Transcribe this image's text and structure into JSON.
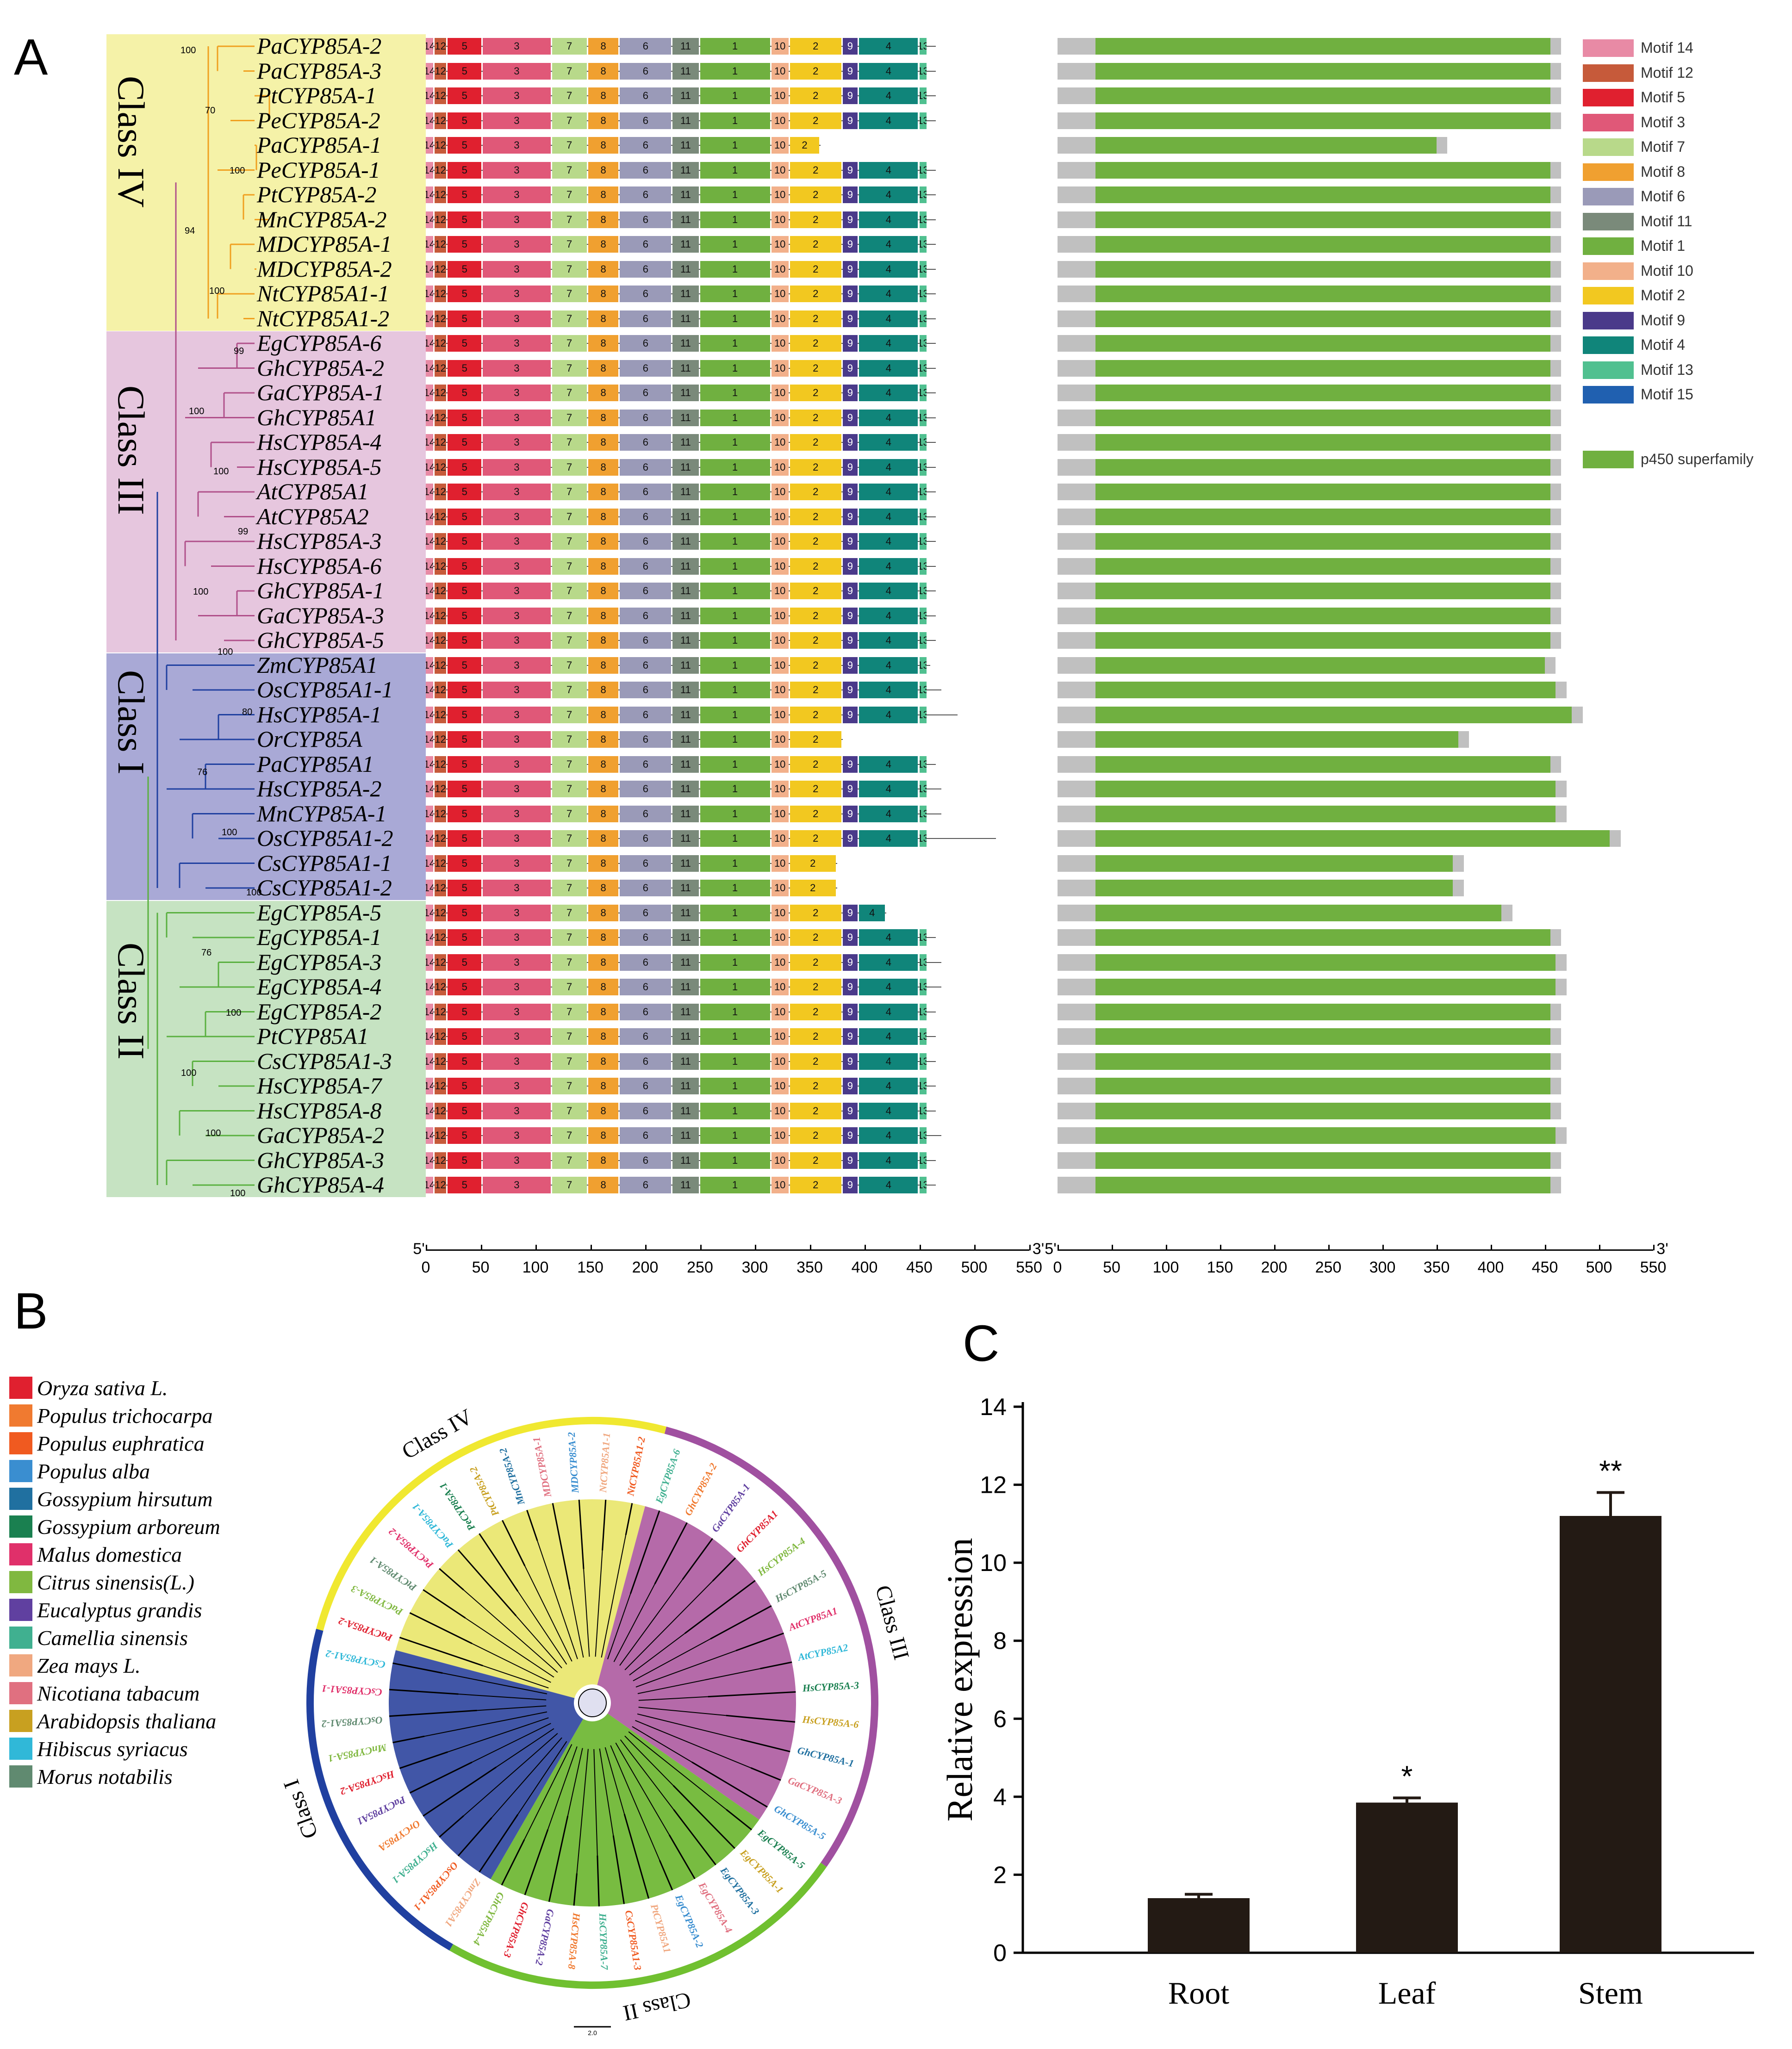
{
  "panels": {
    "a": "A",
    "b": "B",
    "c": "C"
  },
  "classes": [
    {
      "name": "Class IV",
      "color": "#f5f2a8"
    },
    {
      "name": "Class III",
      "color": "#e6c6de"
    },
    {
      "name": "Class I",
      "color": "#a9a9d6"
    },
    {
      "name": "Class II",
      "color": "#c6e3c2"
    }
  ],
  "genes": [
    {
      "label": "PaCYP85A-2",
      "cls": 0,
      "len": 465
    },
    {
      "label": "PaCYP85A-3",
      "cls": 0,
      "len": 465
    },
    {
      "label": "PtCYP85A-1",
      "cls": 0,
      "len": 465
    },
    {
      "label": "PeCYP85A-2",
      "cls": 0,
      "len": 465
    },
    {
      "label": "PaCYP85A-1",
      "cls": 0,
      "len": 360
    },
    {
      "label": "PeCYP85A-1",
      "cls": 0,
      "len": 465
    },
    {
      "label": "PtCYP85A-2",
      "cls": 0,
      "len": 465
    },
    {
      "label": "MnCYP85A-2",
      "cls": 0,
      "len": 465
    },
    {
      "label": "MDCYP85A-1",
      "cls": 0,
      "len": 465
    },
    {
      "label": "MDCYP85A-2",
      "cls": 0,
      "len": 465
    },
    {
      "label": "NtCYP85A1-1",
      "cls": 0,
      "len": 465
    },
    {
      "label": "NtCYP85A1-2",
      "cls": 0,
      "len": 465
    },
    {
      "label": "EgCYP85A-6",
      "cls": 1,
      "len": 465
    },
    {
      "label": "GhCYP85A-2",
      "cls": 1,
      "len": 465
    },
    {
      "label": "GaCYP85A-1",
      "cls": 1,
      "len": 465
    },
    {
      "label": "GhCYP85A1",
      "cls": 1,
      "len": 465
    },
    {
      "label": "HsCYP85A-4",
      "cls": 1,
      "len": 465
    },
    {
      "label": "HsCYP85A-5",
      "cls": 1,
      "len": 465
    },
    {
      "label": "AtCYP85A1",
      "cls": 1,
      "len": 465
    },
    {
      "label": "AtCYP85A2",
      "cls": 1,
      "len": 465
    },
    {
      "label": "HsCYP85A-3",
      "cls": 1,
      "len": 465
    },
    {
      "label": "HsCYP85A-6",
      "cls": 1,
      "len": 465
    },
    {
      "label": "GhCYP85A-1",
      "cls": 1,
      "len": 465
    },
    {
      "label": "GaCYP85A-3",
      "cls": 1,
      "len": 465
    },
    {
      "label": "GhCYP85A-5",
      "cls": 1,
      "len": 465
    },
    {
      "label": "ZmCYP85A1",
      "cls": 2,
      "len": 460
    },
    {
      "label": "OsCYP85A1-1",
      "cls": 2,
      "len": 470
    },
    {
      "label": "HsCYP85A-1",
      "cls": 2,
      "len": 485
    },
    {
      "label": "OrCYP85A",
      "cls": 2,
      "len": 380
    },
    {
      "label": "PaCYP85A1",
      "cls": 2,
      "len": 465
    },
    {
      "label": "HsCYP85A-2",
      "cls": 2,
      "len": 470
    },
    {
      "label": "MnCYP85A-1",
      "cls": 2,
      "len": 470
    },
    {
      "label": "OsCYP85A1-2",
      "cls": 2,
      "len": 520
    },
    {
      "label": "CsCYP85A1-1",
      "cls": 2,
      "len": 375
    },
    {
      "label": "CsCYP85A1-2",
      "cls": 2,
      "len": 375
    },
    {
      "label": "EgCYP85A-5",
      "cls": 3,
      "len": 420
    },
    {
      "label": "EgCYP85A-1",
      "cls": 3,
      "len": 465
    },
    {
      "label": "EgCYP85A-3",
      "cls": 3,
      "len": 470
    },
    {
      "label": "EgCYP85A-4",
      "cls": 3,
      "len": 470
    },
    {
      "label": "EgCYP85A-2",
      "cls": 3,
      "len": 465
    },
    {
      "label": "PtCYP85A1",
      "cls": 3,
      "len": 465
    },
    {
      "label": "CsCYP85A1-3",
      "cls": 3,
      "len": 465
    },
    {
      "label": "HsCYP85A-7",
      "cls": 3,
      "len": 465
    },
    {
      "label": "HsCYP85A-8",
      "cls": 3,
      "len": 465
    },
    {
      "label": "GaCYP85A-2",
      "cls": 3,
      "len": 470
    },
    {
      "label": "GhCYP85A-3",
      "cls": 3,
      "len": 465
    },
    {
      "label": "GhCYP85A-4",
      "cls": 3,
      "len": 465
    }
  ],
  "motifs": [
    {
      "name": "Motif 14",
      "color": "#e88aa5",
      "id": "14"
    },
    {
      "name": "Motif 12",
      "color": "#c65a3a",
      "id": "12"
    },
    {
      "name": "Motif 5",
      "color": "#e0202f",
      "id": "5"
    },
    {
      "name": "Motif 3",
      "color": "#e05878",
      "id": "3"
    },
    {
      "name": "Motif 7",
      "color": "#b8d98a",
      "id": "7"
    },
    {
      "name": "Motif 8",
      "color": "#f0a030",
      "id": "8"
    },
    {
      "name": "Motif 6",
      "color": "#9a9ab8",
      "id": "6"
    },
    {
      "name": "Motif 11",
      "color": "#7a8a7a",
      "id": "11"
    },
    {
      "name": "Motif 1",
      "color": "#70b040",
      "id": "1"
    },
    {
      "name": "Motif 10",
      "color": "#f2b08a",
      "id": "10"
    },
    {
      "name": "Motif 2",
      "color": "#f2c820",
      "id": "2"
    },
    {
      "name": "Motif 9",
      "color": "#4a3a8a",
      "id": "9"
    },
    {
      "name": "Motif 4",
      "color": "#10857a",
      "id": "4"
    },
    {
      "name": "Motif 13",
      "color": "#50c090",
      "id": "13"
    },
    {
      "name": "Motif 15",
      "color": "#2060b0",
      "id": "15"
    }
  ],
  "domain_legend": {
    "label": "p450 superfamily",
    "color": "#70b040"
  },
  "axis": {
    "ticks": [
      "0",
      "50",
      "100",
      "150",
      "200",
      "250",
      "300",
      "350",
      "400",
      "450",
      "500",
      "550"
    ],
    "five_prime": "5'",
    "three_prime": "3'"
  },
  "species": [
    {
      "name": "Oryza sativa L.",
      "color": "#e0202f"
    },
    {
      "name": "Populus trichocarpa",
      "color": "#f07a30"
    },
    {
      "name": "Populus euphratica",
      "color": "#f05a20"
    },
    {
      "name": "Populus alba",
      "color": "#3a8ed0"
    },
    {
      "name": "Gossypium hirsutum",
      "color": "#2070a0"
    },
    {
      "name": "Gossypium arboreum",
      "color": "#1a8050"
    },
    {
      "name": "Malus domestica",
      "color": "#e0306a"
    },
    {
      "name": "Citrus sinensis(L.)",
      "color": "#80b840"
    },
    {
      "name": "Eucalyptus grandis",
      "color": "#6040a0"
    },
    {
      "name": "Camellia sinensis",
      "color": "#40b090"
    },
    {
      "name": "Zea mays L.",
      "color": "#f0a880"
    },
    {
      "name": "Nicotiana tabacum",
      "color": "#e07080"
    },
    {
      "name": "Arabidopsis thaliana",
      "color": "#c8a020"
    },
    {
      "name": "Hibiscus syriacus",
      "color": "#30b8d8"
    },
    {
      "name": "Morus notabilis",
      "color": "#608a70"
    }
  ],
  "circular_tree": {
    "class_labels": [
      "Class IV",
      "Class III",
      "Class II",
      "Class I"
    ],
    "scale": "2.0"
  },
  "chart_data": {
    "type": "bar",
    "categories": [
      "Root",
      "Leaf",
      "Stem"
    ],
    "values": [
      1.4,
      3.85,
      11.2
    ],
    "errors": [
      0.1,
      0.12,
      0.6
    ],
    "significance": [
      "",
      "*",
      "**"
    ],
    "ylabel": "Relative expression",
    "ylim": [
      0,
      14
    ],
    "yticks": [
      "0",
      "2",
      "4",
      "6",
      "8",
      "10",
      "12",
      "14"
    ],
    "bar_color": "#231a14"
  }
}
